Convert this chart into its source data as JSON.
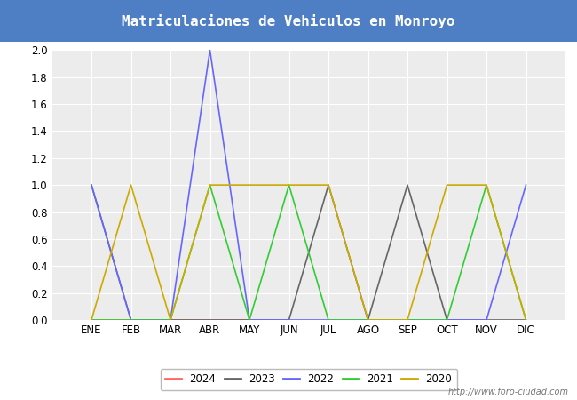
{
  "title": "Matriculaciones de Vehiculos en Monroyo",
  "title_bg_color": "#4e7ec4",
  "title_text_color": "white",
  "months": [
    "ENE",
    "FEB",
    "MAR",
    "ABR",
    "MAY",
    "JUN",
    "JUL",
    "AGO",
    "SEP",
    "OCT",
    "NOV",
    "DIC"
  ],
  "series": {
    "2024": {
      "color": "#ff6666",
      "data": [
        0,
        0,
        0,
        0,
        0,
        null,
        null,
        null,
        null,
        null,
        null,
        null
      ]
    },
    "2023": {
      "color": "#666666",
      "data": [
        1,
        0,
        0,
        0,
        0,
        0,
        1,
        0,
        1,
        0,
        0,
        0
      ]
    },
    "2022": {
      "color": "#6666ff",
      "data": [
        1,
        0,
        0,
        2,
        0,
        0,
        0,
        0,
        0,
        0,
        0,
        1
      ]
    },
    "2021": {
      "color": "#33cc33",
      "data": [
        0,
        0,
        0,
        1,
        0,
        1,
        0,
        0,
        0,
        0,
        1,
        0
      ]
    },
    "2020": {
      "color": "#ccaa00",
      "data": [
        0,
        1,
        0,
        1,
        1,
        1,
        1,
        0,
        0,
        1,
        1,
        0
      ]
    }
  },
  "ylim": [
    0,
    2.0
  ],
  "yticks": [
    0.0,
    0.2,
    0.4,
    0.6,
    0.8,
    1.0,
    1.2,
    1.4,
    1.6,
    1.8,
    2.0
  ],
  "plot_bg_color": "#ececec",
  "grid_color": "white",
  "fig_bg_color": "white",
  "watermark": "http://www.foro-ciudad.com"
}
